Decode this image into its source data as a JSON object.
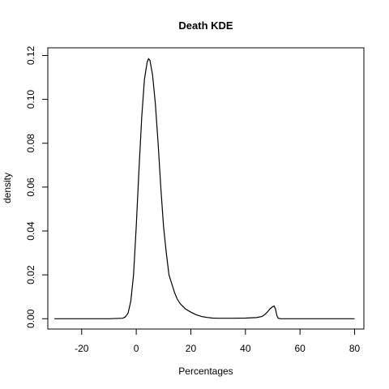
{
  "chart_data": {
    "type": "line",
    "title": "Death  KDE",
    "xlabel": "Percentages",
    "ylabel": "density",
    "xlim": [
      -32.4,
      83.4
    ],
    "ylim": [
      -0.0047,
      0.1235
    ],
    "x_ticks": [
      -20,
      0,
      20,
      40,
      60,
      80
    ],
    "x_tick_labels": [
      "-20",
      "0",
      "20",
      "40",
      "60",
      "80"
    ],
    "y_ticks": [
      0.0,
      0.02,
      0.04,
      0.06,
      0.08,
      0.1,
      0.12
    ],
    "y_tick_labels": [
      "0.00",
      "0.02",
      "0.04",
      "0.06",
      "0.08",
      "0.10",
      "0.12"
    ],
    "grid": false,
    "legend": "none",
    "series": [
      {
        "color": "#000000",
        "points": [
          [
            -30,
            0.0
          ],
          [
            -10,
            0.0
          ],
          [
            -5,
            0.0002
          ],
          [
            -4,
            0.0008
          ],
          [
            -3,
            0.0025
          ],
          [
            -2,
            0.008
          ],
          [
            -1,
            0.02
          ],
          [
            0,
            0.042
          ],
          [
            1,
            0.068
          ],
          [
            2,
            0.092
          ],
          [
            3,
            0.109
          ],
          [
            4,
            0.117
          ],
          [
            4.5,
            0.1185
          ],
          [
            5,
            0.1178
          ],
          [
            6,
            0.111
          ],
          [
            7,
            0.098
          ],
          [
            8,
            0.08
          ],
          [
            9,
            0.06
          ],
          [
            10,
            0.042
          ],
          [
            11,
            0.03
          ],
          [
            12,
            0.02
          ],
          [
            13,
            0.016
          ],
          [
            14,
            0.012
          ],
          [
            15,
            0.009
          ],
          [
            16,
            0.007
          ],
          [
            18,
            0.0045
          ],
          [
            20,
            0.003
          ],
          [
            22,
            0.0018
          ],
          [
            24,
            0.001
          ],
          [
            26,
            0.0006
          ],
          [
            28,
            0.0003
          ],
          [
            30,
            0.0002
          ],
          [
            35,
            0.0002
          ],
          [
            40,
            0.0003
          ],
          [
            44,
            0.0005
          ],
          [
            46,
            0.001
          ],
          [
            47,
            0.0018
          ],
          [
            48,
            0.003
          ],
          [
            49,
            0.0045
          ],
          [
            50,
            0.0055
          ],
          [
            50.5,
            0.0058
          ],
          [
            51,
            0.0045
          ],
          [
            51.5,
            0.0015
          ],
          [
            52,
            0.0002
          ],
          [
            53,
            0.0
          ],
          [
            60,
            0.0
          ],
          [
            80,
            0.0
          ]
        ]
      }
    ]
  }
}
